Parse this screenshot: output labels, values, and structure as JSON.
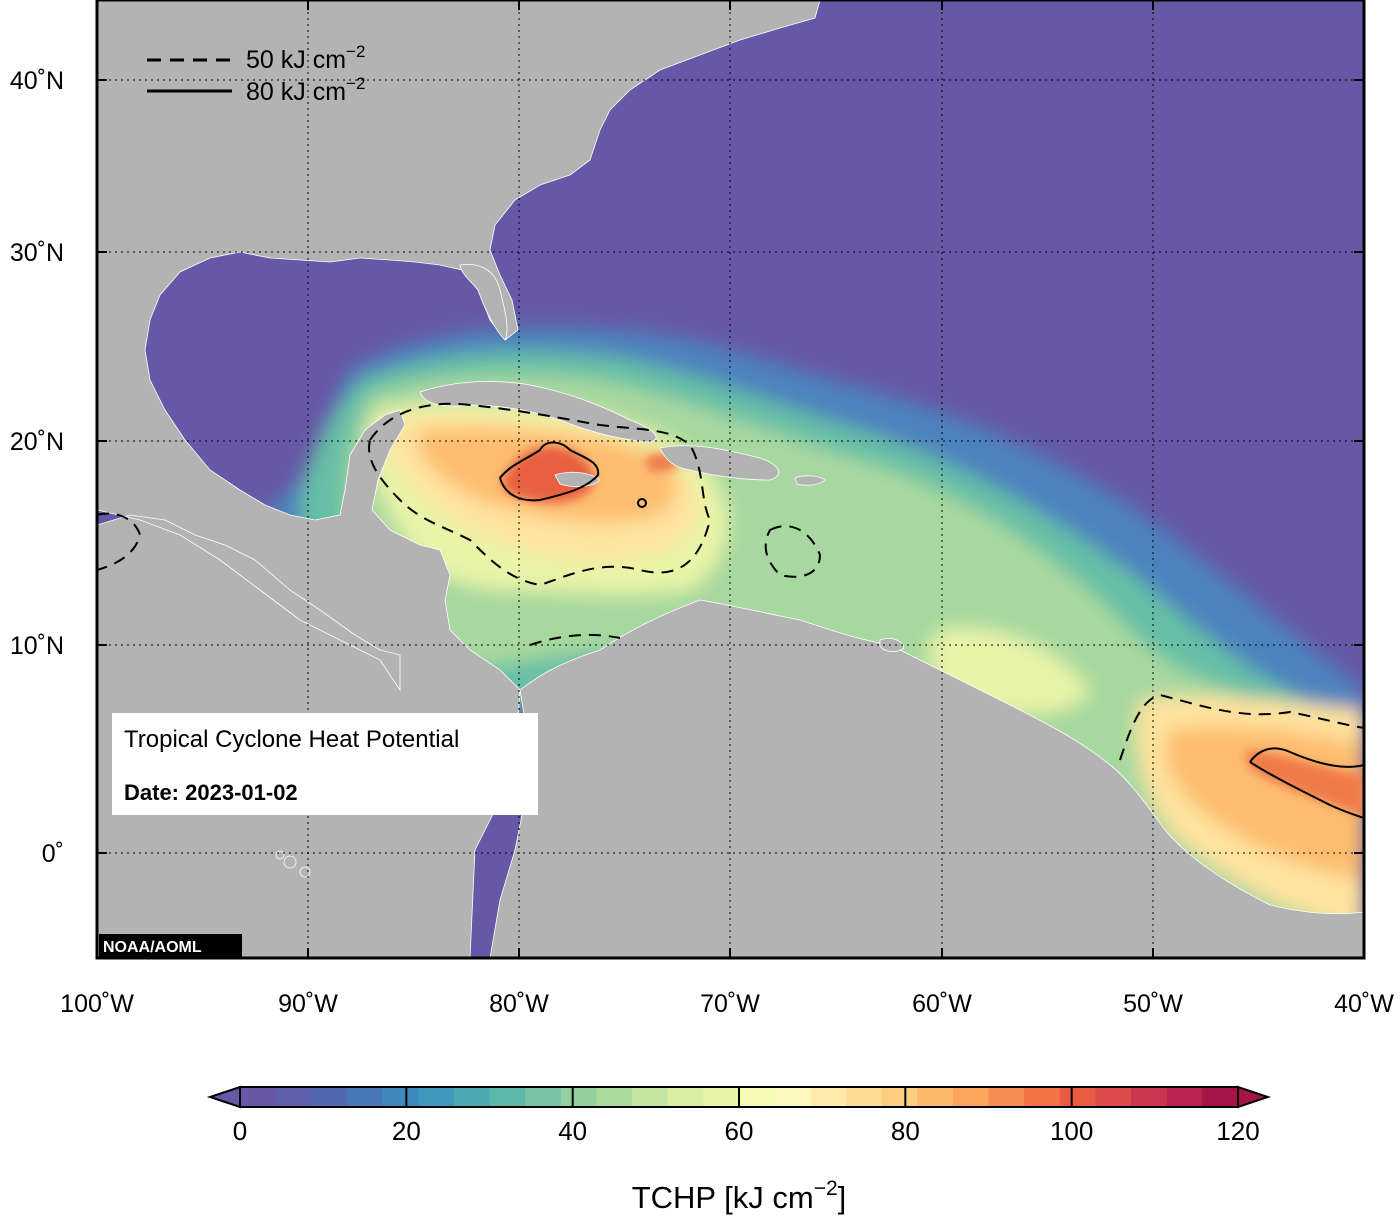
{
  "map": {
    "title": "Tropical Cyclone Heat Potential",
    "date_label": "Date: 2023-01-02",
    "credit": "NOAA/AOML",
    "extent": {
      "lon_min": -100,
      "lon_max": -40,
      "lat_min": -5,
      "lat_max": 44
    },
    "lon_ticks": [
      {
        "value": -100,
        "label": "100˚W"
      },
      {
        "value": -90,
        "label": "90˚W"
      },
      {
        "value": -80,
        "label": "80˚W"
      },
      {
        "value": -70,
        "label": "70˚W"
      },
      {
        "value": -60,
        "label": "60˚W"
      },
      {
        "value": -50,
        "label": "50˚W"
      },
      {
        "value": -40,
        "label": "40˚W"
      }
    ],
    "lat_ticks": [
      {
        "value": 40,
        "label": "40˚N"
      },
      {
        "value": 30,
        "label": "30˚N"
      },
      {
        "value": 20,
        "label": "20˚N"
      },
      {
        "value": 10,
        "label": "10˚N"
      },
      {
        "value": 0,
        "label": "0˚"
      }
    ],
    "contour_legend": [
      {
        "style": "dashed",
        "text": "50 kJ cm",
        "sup": "−2"
      },
      {
        "style": "solid",
        "text": "80 kJ cm",
        "sup": "−2"
      }
    ],
    "colors": {
      "land": "#b3b3b3",
      "low_ocean": "#6658a6",
      "high_ocean": "#f46d43"
    }
  },
  "colorbar": {
    "title": "TCHP [kJ cm",
    "title_sup": "−2",
    "title_end": "]",
    "min": 0,
    "max": 120,
    "tick_values": [
      0,
      20,
      40,
      60,
      80,
      100,
      120
    ],
    "tick_labels": [
      "0",
      "20",
      "40",
      "60",
      "80",
      "100",
      "120"
    ],
    "colors": [
      "#6757a7",
      "#5e5fad",
      "#5268b2",
      "#4777b6",
      "#3f88bb",
      "#3e98bb",
      "#4aa8b3",
      "#5eb8a9",
      "#78c4a2",
      "#93d09f",
      "#acdb9f",
      "#c4e5a0",
      "#d9efa2",
      "#e9f5a6",
      "#f5fab5",
      "#fdf7c0",
      "#feebab",
      "#fede94",
      "#fdcd80",
      "#fdba6d",
      "#fca55f",
      "#f88d52",
      "#f37347",
      "#e85c44",
      "#dc4a4c",
      "#cb3650",
      "#b9234f",
      "#a51347"
    ]
  }
}
